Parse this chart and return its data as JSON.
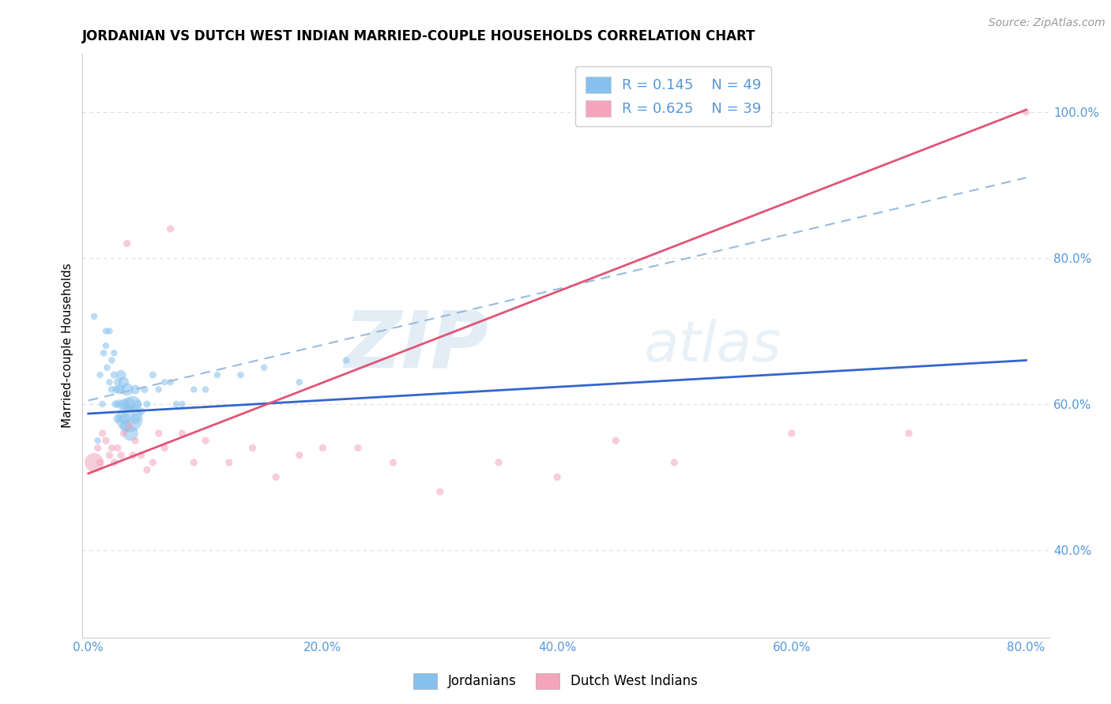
{
  "title": "JORDANIAN VS DUTCH WEST INDIAN MARRIED-COUPLE HOUSEHOLDS CORRELATION CHART",
  "source_text": "Source: ZipAtlas.com",
  "ylabel": "Married-couple Households",
  "xlim": [
    -0.005,
    0.82
  ],
  "ylim": [
    0.28,
    1.08
  ],
  "watermark_zip": "ZIP",
  "watermark_atlas": "atlas",
  "legend_r1": "R = 0.145",
  "legend_n1": "N = 49",
  "legend_r2": "R = 0.625",
  "legend_n2": "N = 39",
  "jordanian_color": "#85C0EE",
  "dutch_color": "#F4A5BC",
  "trendline_jordan_color": "#3366CC",
  "trendline_dutch_color": "#E05575",
  "ref_line_color": "#99BBDD",
  "tick_color": "#5599DD",
  "grid_color": "#DDDDDD",
  "jordanian_label": "Jordanians",
  "dutch_label": "Dutch West Indians",
  "jordanian_x": [
    0.005,
    0.008,
    0.01,
    0.012,
    0.013,
    0.015,
    0.015,
    0.016,
    0.018,
    0.018,
    0.02,
    0.02,
    0.022,
    0.022,
    0.023,
    0.024,
    0.025,
    0.025,
    0.026,
    0.027,
    0.028,
    0.03,
    0.03,
    0.031,
    0.032,
    0.033,
    0.034,
    0.035,
    0.036,
    0.038,
    0.04,
    0.04,
    0.042,
    0.045,
    0.048,
    0.05,
    0.055,
    0.06,
    0.065,
    0.07,
    0.075,
    0.08,
    0.09,
    0.1,
    0.11,
    0.13,
    0.15,
    0.18,
    0.22
  ],
  "jordanian_y": [
    0.72,
    0.55,
    0.64,
    0.6,
    0.67,
    0.68,
    0.7,
    0.65,
    0.63,
    0.7,
    0.62,
    0.66,
    0.67,
    0.64,
    0.6,
    0.62,
    0.63,
    0.58,
    0.6,
    0.62,
    0.64,
    0.6,
    0.63,
    0.58,
    0.57,
    0.62,
    0.6,
    0.58,
    0.56,
    0.6,
    0.58,
    0.62,
    0.6,
    0.59,
    0.62,
    0.6,
    0.64,
    0.62,
    0.63,
    0.63,
    0.6,
    0.6,
    0.62,
    0.62,
    0.64,
    0.64,
    0.65,
    0.63,
    0.66
  ],
  "jordanian_size": [
    25,
    25,
    25,
    25,
    25,
    25,
    25,
    25,
    25,
    25,
    30,
    25,
    25,
    30,
    30,
    35,
    35,
    40,
    45,
    50,
    55,
    60,
    65,
    70,
    80,
    90,
    100,
    400,
    130,
    150,
    60,
    50,
    40,
    35,
    30,
    30,
    28,
    25,
    25,
    25,
    25,
    25,
    25,
    25,
    25,
    25,
    25,
    25,
    25
  ],
  "dutch_x": [
    0.005,
    0.008,
    0.01,
    0.012,
    0.015,
    0.018,
    0.02,
    0.022,
    0.025,
    0.028,
    0.03,
    0.033,
    0.035,
    0.038,
    0.04,
    0.045,
    0.05,
    0.055,
    0.06,
    0.065,
    0.07,
    0.08,
    0.09,
    0.1,
    0.12,
    0.14,
    0.16,
    0.18,
    0.2,
    0.23,
    0.26,
    0.3,
    0.35,
    0.4,
    0.45,
    0.5,
    0.6,
    0.7,
    0.8
  ],
  "dutch_y": [
    0.52,
    0.54,
    0.52,
    0.56,
    0.55,
    0.53,
    0.54,
    0.52,
    0.54,
    0.53,
    0.56,
    0.82,
    0.57,
    0.53,
    0.55,
    0.53,
    0.51,
    0.52,
    0.56,
    0.54,
    0.84,
    0.56,
    0.52,
    0.55,
    0.52,
    0.54,
    0.5,
    0.53,
    0.54,
    0.54,
    0.52,
    0.48,
    0.52,
    0.5,
    0.55,
    0.52,
    0.56,
    0.56,
    1.0
  ],
  "dutch_size": [
    200,
    30,
    30,
    30,
    30,
    30,
    30,
    30,
    30,
    30,
    30,
    30,
    30,
    30,
    30,
    30,
    30,
    30,
    30,
    30,
    30,
    30,
    30,
    30,
    30,
    30,
    30,
    30,
    30,
    30,
    30,
    30,
    30,
    30,
    30,
    30,
    30,
    30,
    30
  ],
  "jordan_trend": [
    0.0,
    0.8,
    0.587,
    0.66
  ],
  "dutch_trend": [
    0.0,
    0.8,
    0.505,
    1.003
  ],
  "ref_line": [
    0.0,
    0.8,
    0.605,
    0.91
  ]
}
